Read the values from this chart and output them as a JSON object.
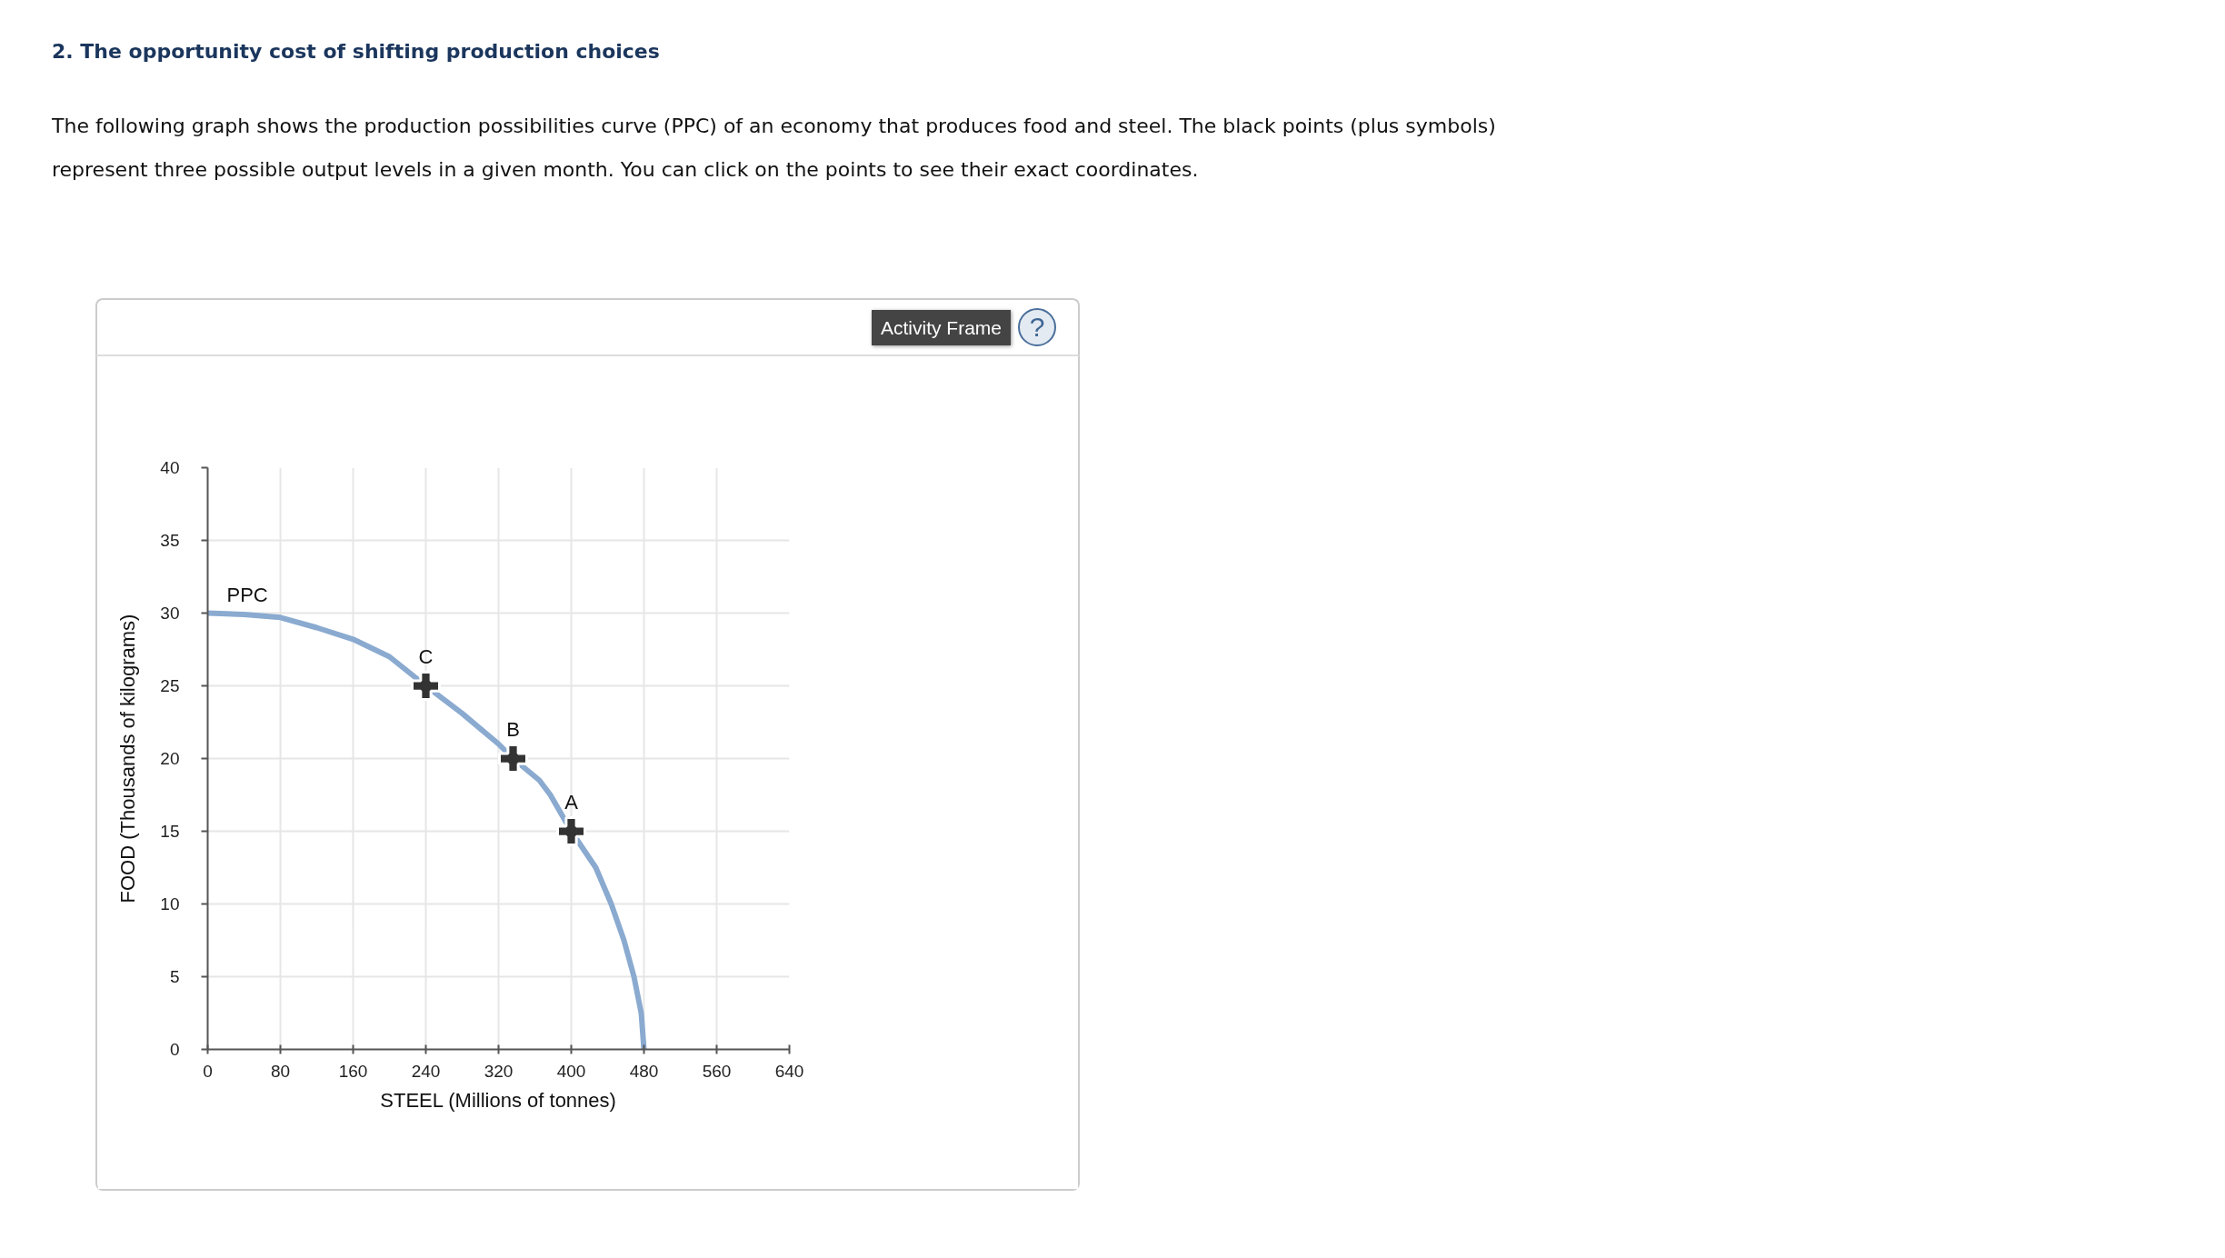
{
  "chart_data": {
    "type": "line",
    "title": "2. The opportunity cost of shifting production choices",
    "subtitle": "The following graph shows the production possibilities curve (PPC) of an economy that produces food and steel. The black points (plus symbols) represent three possible output levels in a given month. You can click on the points to see their exact coordinates.",
    "xlabel": "STEEL (Millions of tonnes)",
    "ylabel": "FOOD (Thousands of kilograms)",
    "xlim": [
      0,
      640
    ],
    "xticks": [
      0,
      80,
      160,
      240,
      320,
      400,
      480,
      560,
      640
    ],
    "ylim": [
      0,
      40
    ],
    "yticks": [
      0,
      5,
      10,
      15,
      20,
      25,
      30,
      35,
      40
    ],
    "grid": true,
    "series": [
      {
        "name": "PPC",
        "color": "#8aaad0",
        "line_style": "solid",
        "x": [
          0,
          40,
          80,
          120,
          160,
          200,
          240,
          280,
          320,
          336,
          365,
          377,
          400,
          427,
          444,
          458,
          469,
          477,
          480
        ],
        "values": [
          30,
          29.9,
          29.7,
          29,
          28.2,
          27,
          25,
          23.1,
          21,
          20,
          18.5,
          17.5,
          15,
          12.5,
          10,
          7.5,
          5,
          2.5,
          0
        ]
      },
      {
        "type": "scatter",
        "color": "#333333",
        "marker": "cross",
        "x": [
          240,
          336,
          400
        ],
        "values": [
          25,
          20,
          15
        ]
      }
    ],
    "annotations": [
      "Activity Frame",
      "?",
      {
        "text": "C",
        "x": 240,
        "y": 25
      },
      {
        "text": "B",
        "x": 336,
        "y": 20
      },
      {
        "text": "A",
        "x": 400,
        "y": 15
      }
    ]
  }
}
